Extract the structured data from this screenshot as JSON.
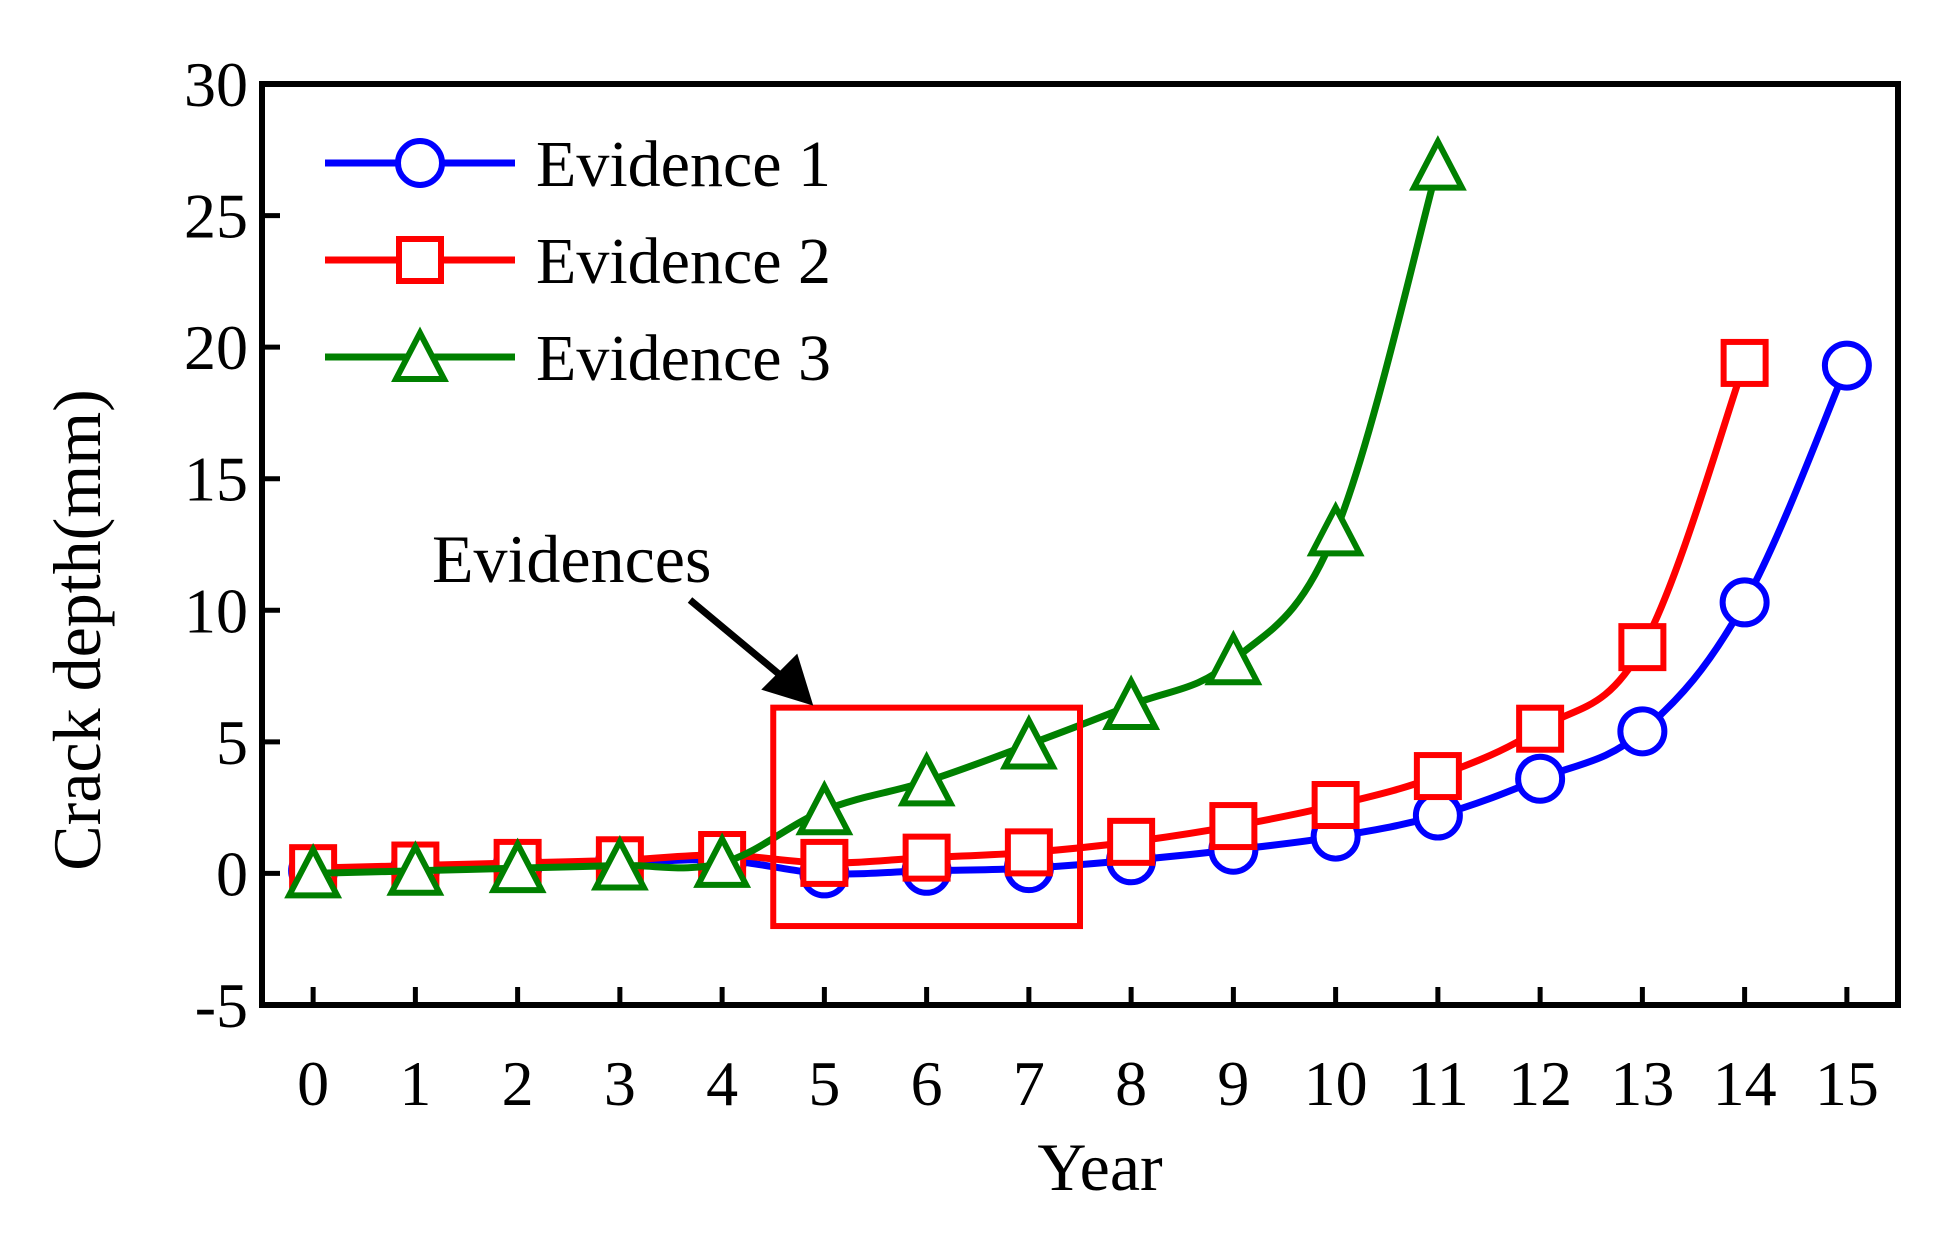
{
  "chart_data": {
    "type": "line",
    "title": "",
    "xlabel": "Year",
    "ylabel": "Crack depth(mm)",
    "xlim": [
      -0.5,
      15.5
    ],
    "ylim": [
      -5,
      30
    ],
    "x_ticks": [
      0,
      1,
      2,
      3,
      4,
      5,
      6,
      7,
      8,
      9,
      10,
      11,
      12,
      13,
      14,
      15
    ],
    "y_ticks": [
      -5,
      0,
      5,
      10,
      15,
      20,
      25,
      30
    ],
    "grid": false,
    "legend_position": "top-left",
    "series": [
      {
        "name": "Evidence 1",
        "color": "#0000ff",
        "marker": "circle",
        "x": [
          0,
          1,
          2,
          3,
          4,
          5,
          6,
          7,
          8,
          9,
          10,
          11,
          12,
          13,
          14,
          15
        ],
        "values": [
          0.1,
          0.2,
          0.3,
          0.4,
          0.5,
          0.0,
          0.1,
          0.2,
          0.5,
          0.9,
          1.4,
          2.2,
          3.6,
          5.4,
          10.3,
          19.3
        ]
      },
      {
        "name": "Evidence 2",
        "color": "#ff0000",
        "marker": "square",
        "x": [
          0,
          1,
          2,
          3,
          4,
          5,
          6,
          7,
          8,
          9,
          10,
          11,
          12,
          13,
          14
        ],
        "values": [
          0.2,
          0.3,
          0.4,
          0.5,
          0.7,
          0.4,
          0.6,
          0.8,
          1.2,
          1.8,
          2.6,
          3.7,
          5.5,
          8.6,
          19.4
        ]
      },
      {
        "name": "Evidence 3",
        "color": "#008000",
        "marker": "triangle",
        "x": [
          0,
          1,
          2,
          3,
          4,
          5,
          6,
          7,
          8,
          9,
          10,
          11
        ],
        "values": [
          0.0,
          0.1,
          0.2,
          0.3,
          0.4,
          2.4,
          3.5,
          4.9,
          6.4,
          8.1,
          13.0,
          26.9
        ]
      }
    ],
    "annotation": {
      "text": "Evidences",
      "highlight_x_range": [
        4.5,
        7.5
      ],
      "highlight_y_range": [
        -2,
        6.3
      ],
      "highlight_color": "#ff0000"
    }
  }
}
